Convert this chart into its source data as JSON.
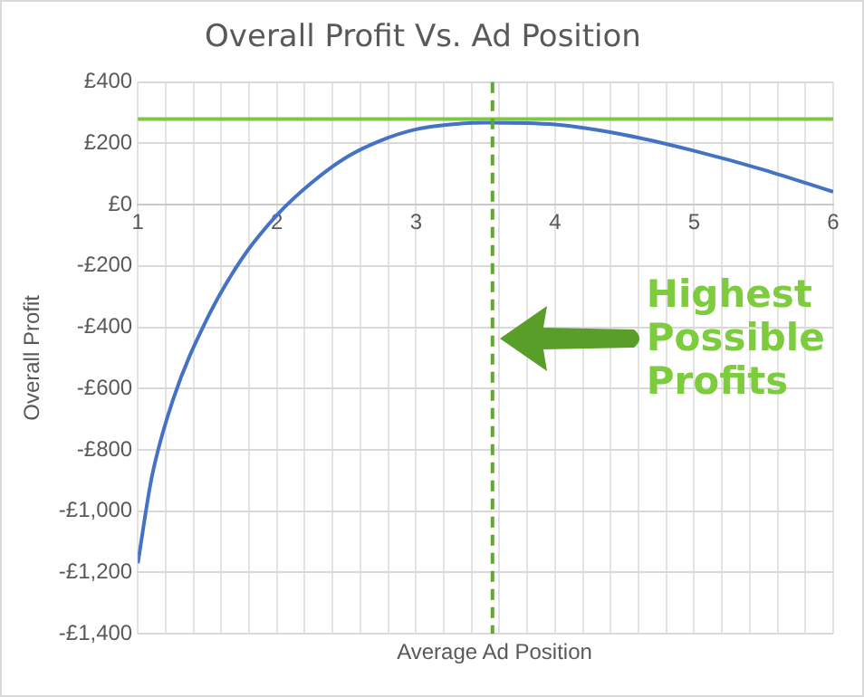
{
  "chart_data": {
    "type": "line",
    "title": "Overall Profit Vs. Ad Position",
    "xlabel": "Average Ad Position",
    "ylabel": "Overall Profit",
    "x": [
      1,
      1.1,
      1.25,
      1.5,
      1.75,
      2,
      2.25,
      2.5,
      2.75,
      3,
      3.25,
      3.5,
      4,
      4.5,
      5,
      5.5,
      6
    ],
    "series": [
      {
        "color": "#4472c4",
        "values": [
          -1170,
          -890,
          -640,
          -370,
          -175,
          -34,
          72,
          155,
          210,
          246,
          262,
          268,
          262,
          228,
          176,
          114,
          42
        ]
      }
    ],
    "xlim": [
      1,
      6
    ],
    "xticks": [
      1,
      {
        "value": 1.2,
        "label": null
      },
      {
        "value": 1.4,
        "label": null
      },
      {
        "value": 1.6,
        "label": null
      },
      {
        "value": 1.8,
        "label": null
      },
      2,
      {
        "value": 2.2,
        "label": null
      },
      {
        "value": 2.4,
        "label": null
      },
      {
        "value": 2.6,
        "label": null
      },
      {
        "value": 2.8,
        "label": null
      },
      3,
      {
        "value": 3.2,
        "label": null
      },
      {
        "value": 3.4,
        "label": null
      },
      {
        "value": 3.6,
        "label": null
      },
      {
        "value": 3.8,
        "label": null
      },
      4,
      {
        "value": 4.2,
        "label": null
      },
      {
        "value": 4.4,
        "label": null
      },
      {
        "value": 4.6,
        "label": null
      },
      {
        "value": 4.8,
        "label": null
      },
      5,
      {
        "value": 5.2,
        "label": null
      },
      {
        "value": 5.4,
        "label": null
      },
      {
        "value": 5.6,
        "label": null
      },
      {
        "value": 5.8,
        "label": null
      },
      6
    ],
    "ylim": [
      -1400,
      400
    ],
    "yticks": [
      {
        "value": -1400,
        "label": "-£1,400"
      },
      {
        "value": -1200,
        "label": "-£1,200"
      },
      {
        "value": -1000,
        "label": "-£1,000"
      },
      {
        "value": -800,
        "label": "-£800"
      },
      {
        "value": -600,
        "label": "-£600"
      },
      {
        "value": -400,
        "label": "-£400"
      },
      {
        "value": -200,
        "label": "-£200"
      },
      {
        "value": 0,
        "label": "£0"
      },
      {
        "value": 200,
        "label": "£200"
      },
      {
        "value": 400,
        "label": "£400"
      }
    ],
    "grid": true,
    "legend": false,
    "marker": "none",
    "line_style": "solid",
    "ref_lines": [
      {
        "axis": "y",
        "value": 280,
        "color": "#7cc843",
        "line_style": "solid"
      },
      {
        "axis": "x",
        "value": 3.55,
        "color": "#5fa832",
        "line_style": "dashed",
        "label": "Highest Possible Profits"
      }
    ]
  }
}
